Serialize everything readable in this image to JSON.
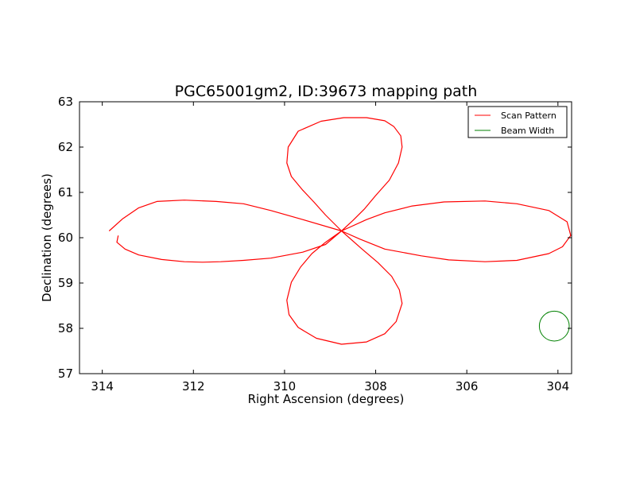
{
  "chart_data": {
    "type": "line",
    "title": "PGC65001gm2, ID:39673 mapping path",
    "xlabel": "Right Ascension (degrees)",
    "ylabel": "Declination (degrees)",
    "xlim": [
      314.5,
      303.7
    ],
    "ylim": [
      57,
      63
    ],
    "x_inverted": true,
    "xticks": [
      314,
      312,
      310,
      308,
      306,
      304
    ],
    "yticks": [
      57,
      58,
      59,
      60,
      61,
      62,
      63
    ],
    "grid": false,
    "legend_position": "top-right",
    "series": [
      {
        "name": "Scan Pattern",
        "color": "#ff0000",
        "x": [
          313.65,
          313.68,
          313.5,
          313.2,
          312.7,
          312.2,
          311.8,
          311.4,
          310.9,
          310.3,
          309.6,
          309.1,
          308.75,
          308.5,
          308.25,
          308.0,
          307.7,
          307.5,
          307.42,
          307.45,
          307.6,
          307.8,
          308.2,
          308.7,
          309.2,
          309.7,
          309.92,
          309.95,
          309.85,
          309.6,
          309.35,
          309.1,
          308.75,
          308.35,
          307.8,
          307.0,
          306.4,
          305.6,
          304.9,
          304.2,
          303.9,
          303.72,
          303.8,
          304.2,
          304.9,
          305.6,
          306.5,
          307.2,
          307.8,
          308.2,
          308.75,
          309.1,
          309.4,
          309.65,
          309.85,
          309.95,
          309.9,
          309.7,
          309.3,
          308.75,
          308.2,
          307.8,
          307.55,
          307.42,
          307.48,
          307.65,
          307.95,
          308.3,
          308.75,
          309.6,
          310.3,
          310.9,
          311.5,
          312.2,
          312.8,
          313.2,
          313.55,
          313.85
        ],
        "y": [
          60.05,
          59.9,
          59.75,
          59.62,
          59.52,
          59.47,
          59.46,
          59.47,
          59.5,
          59.55,
          59.68,
          59.85,
          60.15,
          60.38,
          60.63,
          60.93,
          61.27,
          61.65,
          62.0,
          62.25,
          62.45,
          62.58,
          62.65,
          62.65,
          62.57,
          62.35,
          62.0,
          61.65,
          61.35,
          61.05,
          60.78,
          60.5,
          60.15,
          59.97,
          59.75,
          59.6,
          59.51,
          59.47,
          59.5,
          59.65,
          59.8,
          60.05,
          60.35,
          60.6,
          60.75,
          60.81,
          60.79,
          60.7,
          60.55,
          60.4,
          60.15,
          59.9,
          59.65,
          59.35,
          59.02,
          58.62,
          58.3,
          58.02,
          57.78,
          57.65,
          57.7,
          57.88,
          58.15,
          58.55,
          58.85,
          59.15,
          59.45,
          59.75,
          60.15,
          60.4,
          60.6,
          60.75,
          60.8,
          60.83,
          60.8,
          60.66,
          60.42,
          60.15
        ]
      },
      {
        "name": "Beam Width",
        "color": "#008000",
        "shape": "circle",
        "center": [
          304.08,
          58.05
        ],
        "radius_deg": 0.33
      }
    ]
  }
}
